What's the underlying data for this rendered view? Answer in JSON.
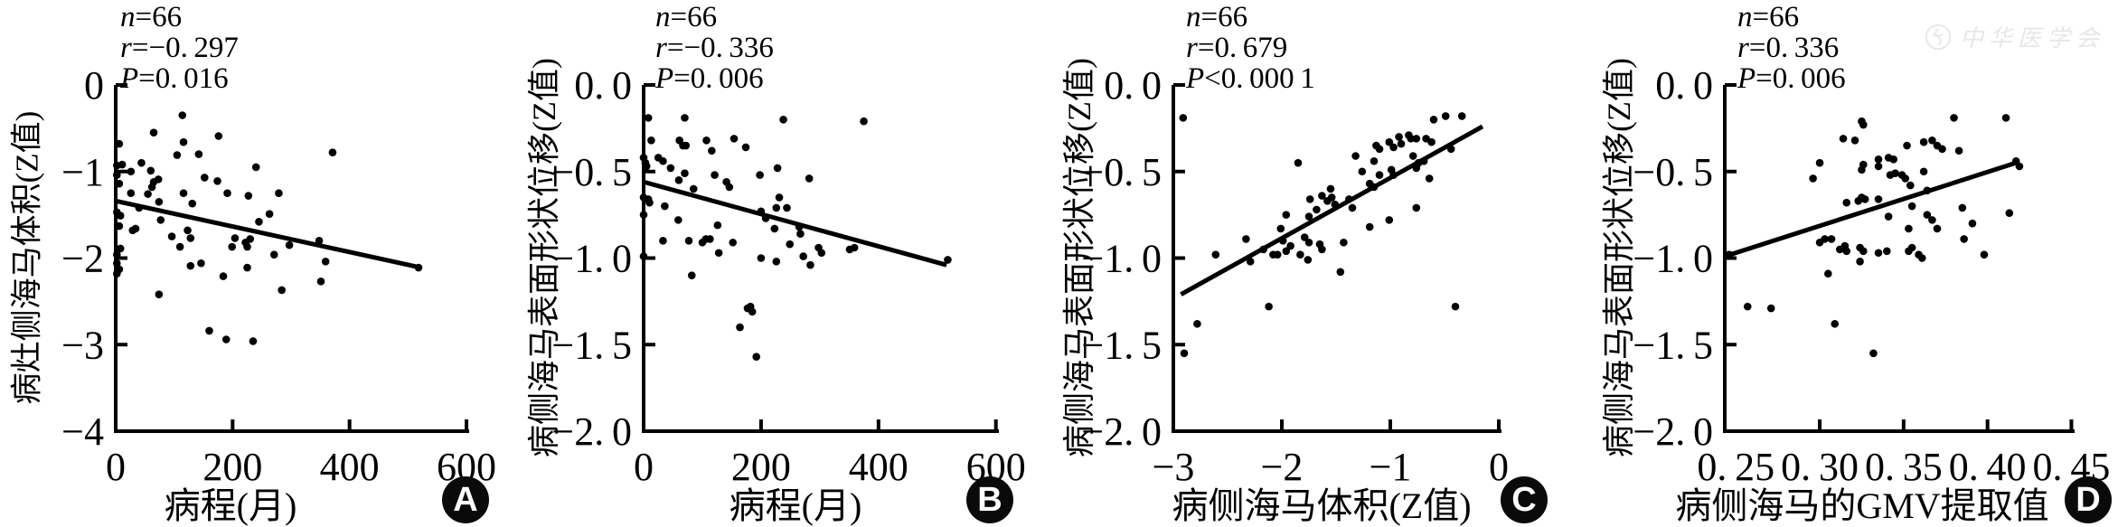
{
  "watermark": {
    "text": "中华医学会"
  },
  "chart_data": [
    {
      "type": "scatter",
      "panel": "A",
      "stats": [
        {
          "var": "n",
          "rest": "=66"
        },
        {
          "var": "r",
          "rest": "=−0. 297"
        },
        {
          "var": "P",
          "rest": "=0. 016"
        }
      ],
      "xlabel": "病程(月)",
      "ylabel": "病灶侧海马体积(Z值)",
      "xlim": [
        0,
        605
      ],
      "ylim": [
        -4,
        0
      ],
      "x_ticks": [
        {
          "v": 0,
          "label": "0"
        },
        {
          "v": 200,
          "label": "200"
        },
        {
          "v": 400,
          "label": "400"
        },
        {
          "v": 600,
          "label": "600"
        }
      ],
      "y_ticks": [
        {
          "v": 0,
          "label": "0"
        },
        {
          "v": -1,
          "label": "−1"
        },
        {
          "v": -2,
          "label": "−2"
        },
        {
          "v": -3,
          "label": "−3"
        },
        {
          "v": -4,
          "label": "−4"
        }
      ],
      "regression": {
        "x1": 0,
        "y1": -1.34,
        "x2": 522,
        "y2": -2.11
      },
      "points": [
        [
          6,
          -0.68
        ],
        [
          65,
          -0.55
        ],
        [
          114,
          -0.35
        ],
        [
          116,
          -0.66
        ],
        [
          176,
          -0.59
        ],
        [
          105,
          -0.81
        ],
        [
          142,
          -0.8
        ],
        [
          371,
          -0.78
        ],
        [
          2,
          -0.93
        ],
        [
          11,
          -0.92
        ],
        [
          26,
          -1.0
        ],
        [
          44,
          -0.9
        ],
        [
          60,
          -0.99
        ],
        [
          2,
          -1.04
        ],
        [
          6,
          -1.14
        ],
        [
          65,
          -1.12
        ],
        [
          73,
          -1.09
        ],
        [
          152,
          -1.07
        ],
        [
          174,
          -1.11
        ],
        [
          26,
          -1.25
        ],
        [
          55,
          -1.26
        ],
        [
          62,
          -1.18
        ],
        [
          116,
          -1.25
        ],
        [
          191,
          -1.25
        ],
        [
          227,
          -1.28
        ],
        [
          240,
          -0.95
        ],
        [
          279,
          -1.25
        ],
        [
          74,
          -1.35
        ],
        [
          131,
          -1.37
        ],
        [
          2,
          -1.47
        ],
        [
          8,
          -1.51
        ],
        [
          77,
          -1.56
        ],
        [
          245,
          -1.58
        ],
        [
          263,
          -1.49
        ],
        [
          40,
          -1.42
        ],
        [
          6,
          -1.63
        ],
        [
          29,
          -1.68
        ],
        [
          34,
          -1.66
        ],
        [
          96,
          -1.75
        ],
        [
          123,
          -1.68
        ],
        [
          128,
          -1.77
        ],
        [
          110,
          -1.87
        ],
        [
          199,
          -1.87
        ],
        [
          204,
          -1.77
        ],
        [
          222,
          -1.82
        ],
        [
          225,
          -1.87
        ],
        [
          230,
          -1.78
        ],
        [
          2,
          -1.96
        ],
        [
          8,
          -1.89
        ],
        [
          271,
          -1.96
        ],
        [
          297,
          -1.85
        ],
        [
          348,
          -1.8
        ],
        [
          359,
          -2.04
        ],
        [
          2,
          -2.06
        ],
        [
          6,
          -2.13
        ],
        [
          128,
          -2.09
        ],
        [
          146,
          -2.06
        ],
        [
          225,
          -2.11
        ],
        [
          2,
          -2.18
        ],
        [
          184,
          -2.21
        ],
        [
          351,
          -2.27
        ],
        [
          284,
          -2.37
        ],
        [
          74,
          -2.42
        ],
        [
          160,
          -2.84
        ],
        [
          189,
          -2.94
        ],
        [
          235,
          -2.96
        ],
        [
          518,
          -2.11
        ]
      ]
    },
    {
      "type": "scatter",
      "panel": "B",
      "stats": [
        {
          "var": "n",
          "rest": "=66"
        },
        {
          "var": "r",
          "rest": "=−0. 336"
        },
        {
          "var": "P",
          "rest": "=0. 006"
        }
      ],
      "xlabel": "病程(月)",
      "ylabel": "病侧海马表面形状位移(Z值)",
      "xlim": [
        0,
        605
      ],
      "ylim": [
        -2,
        0
      ],
      "x_ticks": [
        {
          "v": 0,
          "label": "0"
        },
        {
          "v": 200,
          "label": "200"
        },
        {
          "v": 400,
          "label": "400"
        },
        {
          "v": 600,
          "label": "600"
        }
      ],
      "y_ticks": [
        {
          "v": 0,
          "label": "0. 0"
        },
        {
          "v": -0.5,
          "label": "−0. 5"
        },
        {
          "v": -1,
          "label": "−1. 0"
        },
        {
          "v": -1.5,
          "label": "−1. 5"
        },
        {
          "v": -2,
          "label": "−2. 0"
        }
      ],
      "regression": {
        "x1": 0,
        "y1": -0.56,
        "x2": 516,
        "y2": -1.04
      },
      "points": [
        [
          8,
          -0.19
        ],
        [
          70,
          -0.19
        ],
        [
          238,
          -0.2
        ],
        [
          375,
          -0.21
        ],
        [
          13,
          -0.32
        ],
        [
          61,
          -0.32
        ],
        [
          67,
          -0.35
        ],
        [
          72,
          -0.35
        ],
        [
          107,
          -0.32
        ],
        [
          116,
          -0.38
        ],
        [
          154,
          -0.31
        ],
        [
          174,
          -0.36
        ],
        [
          0,
          -0.42
        ],
        [
          3,
          -0.45
        ],
        [
          5,
          -0.47
        ],
        [
          25,
          -0.42
        ],
        [
          33,
          -0.44
        ],
        [
          46,
          -0.48
        ],
        [
          70,
          -0.51
        ],
        [
          121,
          -0.52
        ],
        [
          141,
          -0.56
        ],
        [
          146,
          -0.59
        ],
        [
          85,
          -0.6
        ],
        [
          198,
          -0.52
        ],
        [
          228,
          -0.48
        ],
        [
          282,
          -0.54
        ],
        [
          60,
          -0.55
        ],
        [
          0,
          -0.65
        ],
        [
          8,
          -0.66
        ],
        [
          10,
          -0.68
        ],
        [
          36,
          -0.7
        ],
        [
          0,
          -0.75
        ],
        [
          59,
          -0.78
        ],
        [
          231,
          -0.65
        ],
        [
          226,
          -0.71
        ],
        [
          244,
          -0.71
        ],
        [
          200,
          -0.73
        ],
        [
          208,
          -0.77
        ],
        [
          126,
          -0.81
        ],
        [
          223,
          -0.83
        ],
        [
          265,
          -0.82
        ],
        [
          267,
          -0.86
        ],
        [
          33,
          -0.9
        ],
        [
          77,
          -0.9
        ],
        [
          100,
          -0.91
        ],
        [
          106,
          -0.89
        ],
        [
          113,
          -0.89
        ],
        [
          152,
          -0.91
        ],
        [
          128,
          -0.97
        ],
        [
          249,
          -0.92
        ],
        [
          298,
          -0.94
        ],
        [
          303,
          -0.97
        ],
        [
          351,
          -0.95
        ],
        [
          359,
          -0.94
        ],
        [
          0,
          -0.99
        ],
        [
          200,
          -1.0
        ],
        [
          226,
          -1.02
        ],
        [
          272,
          -0.99
        ],
        [
          284,
          -1.04
        ],
        [
          82,
          -1.1
        ],
        [
          177,
          -1.29
        ],
        [
          182,
          -1.28
        ],
        [
          185,
          -1.31
        ],
        [
          164,
          -1.4
        ],
        [
          192,
          -1.57
        ],
        [
          518,
          -1.01
        ]
      ]
    },
    {
      "type": "scatter",
      "panel": "C",
      "stats": [
        {
          "var": "n",
          "rest": "=66"
        },
        {
          "var": "r",
          "rest": "=0. 679"
        },
        {
          "var": "P",
          "rest": "<0. 000 1"
        }
      ],
      "xlabel": "病侧海马体积(Z值)",
      "ylabel": "病侧海马表面形状位移(Z值)",
      "xlim": [
        -3,
        0.05
      ],
      "ylim": [
        -2,
        0
      ],
      "x_ticks": [
        {
          "v": -3,
          "label": "−3"
        },
        {
          "v": -2,
          "label": "−2"
        },
        {
          "v": -1,
          "label": "−1"
        },
        {
          "v": 0,
          "label": "0"
        }
      ],
      "y_ticks": [
        {
          "v": 0,
          "label": "0. 0"
        },
        {
          "v": -0.5,
          "label": "−0. 5"
        },
        {
          "v": -1,
          "label": "−1. 0"
        },
        {
          "v": -1.5,
          "label": "−1. 5"
        },
        {
          "v": -2,
          "label": "−2. 0"
        }
      ],
      "regression": {
        "x1": -2.93,
        "y1": -1.21,
        "x2": -0.15,
        "y2": -0.24
      },
      "points": [
        [
          -2.91,
          -0.19
        ],
        [
          -0.6,
          -0.2
        ],
        [
          -0.49,
          -0.18
        ],
        [
          -0.34,
          -0.18
        ],
        [
          -0.92,
          -0.3
        ],
        [
          -0.83,
          -0.29
        ],
        [
          -1.01,
          -0.33
        ],
        [
          -0.97,
          -0.36
        ],
        [
          -0.9,
          -0.34
        ],
        [
          -0.81,
          -0.31
        ],
        [
          -0.76,
          -0.31
        ],
        [
          -0.67,
          -0.31
        ],
        [
          -0.62,
          -0.33
        ],
        [
          -1.13,
          -0.35
        ],
        [
          -1.1,
          -0.37
        ],
        [
          -0.44,
          -0.37
        ],
        [
          -1.32,
          -0.41
        ],
        [
          -0.79,
          -0.41
        ],
        [
          -0.69,
          -0.44
        ],
        [
          -0.74,
          -0.45
        ],
        [
          -0.76,
          -0.48
        ],
        [
          -1.85,
          -0.45
        ],
        [
          -1.26,
          -0.5
        ],
        [
          -1.15,
          -0.44
        ],
        [
          -1.1,
          -0.52
        ],
        [
          -0.99,
          -0.49
        ],
        [
          -0.97,
          -0.52
        ],
        [
          -1.19,
          -0.57
        ],
        [
          -1.15,
          -0.59
        ],
        [
          -0.64,
          -0.54
        ],
        [
          -1.74,
          -0.66
        ],
        [
          -1.63,
          -0.64
        ],
        [
          -1.58,
          -0.67
        ],
        [
          -1.54,
          -0.65
        ],
        [
          -1.51,
          -0.69
        ],
        [
          -1.68,
          -0.72
        ],
        [
          -1.38,
          -0.66
        ],
        [
          -1.35,
          -0.71
        ],
        [
          -1.75,
          -0.76
        ],
        [
          -1.96,
          -0.75
        ],
        [
          -0.76,
          -0.71
        ],
        [
          -1.01,
          -0.78
        ],
        [
          -1.19,
          -0.82
        ],
        [
          -2.01,
          -0.83
        ],
        [
          -1.55,
          -0.6
        ],
        [
          -2.33,
          -0.89
        ],
        [
          -1.99,
          -0.9
        ],
        [
          -1.79,
          -0.88
        ],
        [
          -1.75,
          -0.91
        ],
        [
          -1.65,
          -0.92
        ],
        [
          -1.63,
          -0.95
        ],
        [
          -1.96,
          -0.96
        ],
        [
          -1.92,
          -0.93
        ],
        [
          -2.17,
          -0.95
        ],
        [
          -2.08,
          -0.98
        ],
        [
          -2.04,
          -0.98
        ],
        [
          -1.83,
          -0.98
        ],
        [
          -1.76,
          -1.01
        ],
        [
          -2.29,
          -1.02
        ],
        [
          -2.61,
          -0.98
        ],
        [
          -1.43,
          -0.91
        ],
        [
          -1.46,
          -1.08
        ],
        [
          -2.12,
          -1.28
        ],
        [
          -0.4,
          -1.28
        ],
        [
          -2.78,
          -1.38
        ],
        [
          -2.9,
          -1.55
        ]
      ]
    },
    {
      "type": "scatter",
      "panel": "D",
      "stats": [
        {
          "var": "n",
          "rest": "=66"
        },
        {
          "var": "r",
          "rest": "=0. 336"
        },
        {
          "var": "P",
          "rest": "=0. 006"
        }
      ],
      "xlabel": "病侧海马的GMV提取值",
      "ylabel": "病侧海马表面形状位移(Z值)",
      "xlim": [
        0.2434,
        0.4525
      ],
      "ylim": [
        -2,
        0
      ],
      "x_ticks": [
        {
          "v": 0.25,
          "label": "0. 25"
        },
        {
          "v": 0.3,
          "label": "0. 30"
        },
        {
          "v": 0.35,
          "label": "0. 35"
        },
        {
          "v": 0.4,
          "label": "0. 40"
        },
        {
          "v": 0.45,
          "label": "0. 45"
        }
      ],
      "y_ticks": [
        {
          "v": 0,
          "label": "0. 0"
        },
        {
          "v": -0.5,
          "label": "−0. 5"
        },
        {
          "v": -1,
          "label": "−1. 0"
        },
        {
          "v": -1.5,
          "label": "−1. 5"
        },
        {
          "v": -2,
          "label": "−2. 0"
        }
      ],
      "regression": {
        "x1": 0.2434,
        "y1": -0.99,
        "x2": 0.417,
        "y2": -0.45
      },
      "points": [
        [
          0.325,
          -0.21
        ],
        [
          0.326,
          -0.23
        ],
        [
          0.38,
          -0.19
        ],
        [
          0.411,
          -0.19
        ],
        [
          0.314,
          -0.31
        ],
        [
          0.321,
          -0.32
        ],
        [
          0.352,
          -0.35
        ],
        [
          0.362,
          -0.33
        ],
        [
          0.367,
          -0.32
        ],
        [
          0.37,
          -0.35
        ],
        [
          0.373,
          -0.37
        ],
        [
          0.383,
          -0.38
        ],
        [
          0.335,
          -0.43
        ],
        [
          0.335,
          -0.47
        ],
        [
          0.341,
          -0.42
        ],
        [
          0.344,
          -0.43
        ],
        [
          0.3,
          -0.45
        ],
        [
          0.296,
          -0.54
        ],
        [
          0.325,
          -0.49
        ],
        [
          0.326,
          -0.46
        ],
        [
          0.342,
          -0.52
        ],
        [
          0.345,
          -0.51
        ],
        [
          0.349,
          -0.52
        ],
        [
          0.351,
          -0.54
        ],
        [
          0.362,
          -0.5
        ],
        [
          0.354,
          -0.58
        ],
        [
          0.364,
          -0.61
        ],
        [
          0.417,
          -0.44
        ],
        [
          0.419,
          -0.47
        ],
        [
          0.316,
          -0.68
        ],
        [
          0.323,
          -0.67
        ],
        [
          0.325,
          -0.65
        ],
        [
          0.327,
          -0.66
        ],
        [
          0.335,
          -0.66
        ],
        [
          0.355,
          -0.7
        ],
        [
          0.341,
          -0.76
        ],
        [
          0.364,
          -0.75
        ],
        [
          0.367,
          -0.78
        ],
        [
          0.385,
          -0.71
        ],
        [
          0.413,
          -0.74
        ],
        [
          0.353,
          -0.83
        ],
        [
          0.37,
          -0.83
        ],
        [
          0.391,
          -0.8
        ],
        [
          0.386,
          -0.89
        ],
        [
          0.398,
          -0.98
        ],
        [
          0.3,
          -0.91
        ],
        [
          0.303,
          -0.89
        ],
        [
          0.307,
          -0.89
        ],
        [
          0.312,
          -0.95
        ],
        [
          0.315,
          -0.93
        ],
        [
          0.316,
          -0.96
        ],
        [
          0.324,
          -0.94
        ],
        [
          0.326,
          -0.96
        ],
        [
          0.335,
          -0.97
        ],
        [
          0.34,
          -0.96
        ],
        [
          0.353,
          -0.96
        ],
        [
          0.355,
          -0.94
        ],
        [
          0.359,
          -0.98
        ],
        [
          0.361,
          -1.0
        ],
        [
          0.324,
          -1.02
        ],
        [
          0.305,
          -1.09
        ],
        [
          0.246,
          -0.98
        ],
        [
          0.257,
          -1.28
        ],
        [
          0.271,
          -1.29
        ],
        [
          0.309,
          -1.38
        ],
        [
          0.332,
          -1.55
        ]
      ]
    }
  ]
}
